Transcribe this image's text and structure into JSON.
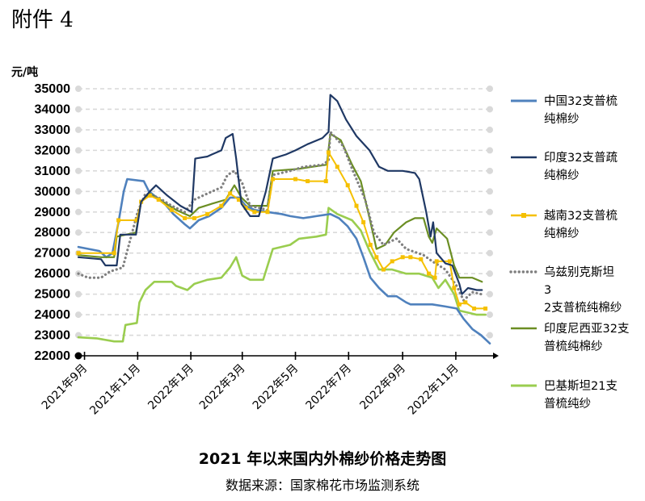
{
  "page": {
    "attachment_label": "附件 4"
  },
  "chart_data": {
    "type": "line",
    "title": "2021 年以来国内外棉纱价格走势图",
    "source": "数据来源：国家棉花市场监测系统",
    "ylabel": "元/吨",
    "ylim": [
      22000,
      35000
    ],
    "yticks": [
      22000,
      23000,
      24000,
      25000,
      26000,
      27000,
      28000,
      29000,
      30000,
      31000,
      32000,
      33000,
      34000,
      35000
    ],
    "grid": true,
    "legend_position": "right",
    "x_axis": {
      "type": "date",
      "range": [
        "2021-08-25",
        "2022-12-10"
      ],
      "tick_dates": [
        "2021-09-01",
        "2021-11-01",
        "2022-01-01",
        "2022-03-01",
        "2022-05-01",
        "2022-07-01",
        "2022-09-01",
        "2022-11-01"
      ],
      "tick_labels": [
        "2021年9月",
        "2021年11月",
        "2022年1月",
        "2022年3月",
        "2022年5月",
        "2022年7月",
        "2022年9月",
        "2022年11月"
      ]
    },
    "series": [
      {
        "name": "中国32支普梳纯棉纱",
        "color": "#4f81bd",
        "style": "solid",
        "width": 2.6,
        "points": [
          [
            "2021-08-25",
            27300
          ],
          [
            "2021-09-06",
            27200
          ],
          [
            "2021-09-18",
            27100
          ],
          [
            "2021-09-26",
            26800
          ],
          [
            "2021-10-03",
            27000
          ],
          [
            "2021-10-10",
            28500
          ],
          [
            "2021-10-16",
            30000
          ],
          [
            "2021-10-20",
            30600
          ],
          [
            "2021-11-08",
            30500
          ],
          [
            "2021-11-14",
            30000
          ],
          [
            "2021-11-20",
            29800
          ],
          [
            "2021-11-30",
            29500
          ],
          [
            "2021-12-12",
            28900
          ],
          [
            "2021-12-25",
            28400
          ],
          [
            "2021-12-31",
            28200
          ],
          [
            "2022-01-10",
            28600
          ],
          [
            "2022-01-22",
            28800
          ],
          [
            "2022-02-05",
            29200
          ],
          [
            "2022-02-15",
            29700
          ],
          [
            "2022-02-25",
            29700
          ],
          [
            "2022-03-05",
            29300
          ],
          [
            "2022-03-15",
            29100
          ],
          [
            "2022-03-30",
            29000
          ],
          [
            "2022-04-15",
            28900
          ],
          [
            "2022-04-25",
            28800
          ],
          [
            "2022-05-10",
            28700
          ],
          [
            "2022-05-25",
            28800
          ],
          [
            "2022-06-10",
            28900
          ],
          [
            "2022-06-20",
            28700
          ],
          [
            "2022-06-30",
            28300
          ],
          [
            "2022-07-10",
            27700
          ],
          [
            "2022-07-18",
            26800
          ],
          [
            "2022-07-26",
            25800
          ],
          [
            "2022-08-05",
            25300
          ],
          [
            "2022-08-15",
            24900
          ],
          [
            "2022-08-25",
            24900
          ],
          [
            "2022-09-05",
            24600
          ],
          [
            "2022-09-10",
            24500
          ],
          [
            "2022-09-22",
            24500
          ],
          [
            "2022-10-05",
            24500
          ],
          [
            "2022-10-20",
            24400
          ],
          [
            "2022-11-02",
            24300
          ],
          [
            "2022-11-10",
            23800
          ],
          [
            "2022-11-20",
            23300
          ],
          [
            "2022-11-30",
            23000
          ],
          [
            "2022-12-10",
            22600
          ]
        ]
      },
      {
        "name": "印度32支普疏纯棉纱",
        "color": "#1f3864",
        "style": "solid",
        "width": 2.2,
        "points": [
          [
            "2021-08-25",
            26800
          ],
          [
            "2021-09-20",
            26700
          ],
          [
            "2021-09-25",
            26400
          ],
          [
            "2021-10-08",
            26400
          ],
          [
            "2021-10-12",
            27900
          ],
          [
            "2021-10-30",
            27900
          ],
          [
            "2021-11-05",
            29500
          ],
          [
            "2021-11-15",
            30000
          ],
          [
            "2021-11-22",
            30300
          ],
          [
            "2021-12-05",
            29800
          ],
          [
            "2021-12-20",
            29300
          ],
          [
            "2022-01-02",
            29000
          ],
          [
            "2022-01-06",
            31600
          ],
          [
            "2022-01-20",
            31700
          ],
          [
            "2022-01-25",
            31800
          ],
          [
            "2022-02-05",
            32000
          ],
          [
            "2022-02-10",
            32600
          ],
          [
            "2022-02-18",
            32800
          ],
          [
            "2022-02-22",
            31600
          ],
          [
            "2022-02-28",
            29400
          ],
          [
            "2022-03-10",
            28800
          ],
          [
            "2022-03-20",
            28800
          ],
          [
            "2022-03-28",
            30000
          ],
          [
            "2022-04-05",
            31600
          ],
          [
            "2022-04-20",
            31800
          ],
          [
            "2022-05-01",
            32000
          ],
          [
            "2022-05-15",
            32300
          ],
          [
            "2022-06-01",
            32600
          ],
          [
            "2022-06-08",
            32900
          ],
          [
            "2022-06-10",
            34700
          ],
          [
            "2022-06-18",
            34400
          ],
          [
            "2022-06-28",
            33500
          ],
          [
            "2022-07-10",
            32700
          ],
          [
            "2022-07-25",
            32000
          ],
          [
            "2022-08-05",
            31200
          ],
          [
            "2022-08-15",
            31000
          ],
          [
            "2022-09-01",
            31000
          ],
          [
            "2022-09-15",
            30900
          ],
          [
            "2022-09-20",
            30600
          ],
          [
            "2022-09-28",
            29000
          ],
          [
            "2022-10-03",
            27800
          ],
          [
            "2022-10-06",
            28500
          ],
          [
            "2022-10-10",
            27000
          ],
          [
            "2022-10-20",
            26500
          ],
          [
            "2022-10-28",
            26400
          ],
          [
            "2022-11-05",
            25500
          ],
          [
            "2022-11-08",
            25000
          ],
          [
            "2022-11-15",
            25300
          ],
          [
            "2022-11-25",
            25200
          ],
          [
            "2022-12-01",
            25200
          ]
        ]
      },
      {
        "name": "越南32支普梳纯棉纱",
        "color": "#f5c000",
        "style": "solid-markers",
        "width": 2.0,
        "points": [
          [
            "2021-08-25",
            27000
          ],
          [
            "2021-10-05",
            27000
          ],
          [
            "2021-10-10",
            28600
          ],
          [
            "2021-10-31",
            28600
          ],
          [
            "2021-11-05",
            29500
          ],
          [
            "2021-11-15",
            29800
          ],
          [
            "2021-11-25",
            29600
          ],
          [
            "2021-12-10",
            29100
          ],
          [
            "2021-12-25",
            28700
          ],
          [
            "2022-01-05",
            28700
          ],
          [
            "2022-01-20",
            28900
          ],
          [
            "2022-02-05",
            29300
          ],
          [
            "2022-02-15",
            29900
          ],
          [
            "2022-02-25",
            29600
          ],
          [
            "2022-03-05",
            29200
          ],
          [
            "2022-03-15",
            29000
          ],
          [
            "2022-03-30",
            29000
          ],
          [
            "2022-04-05",
            30600
          ],
          [
            "2022-05-01",
            30600
          ],
          [
            "2022-05-15",
            30500
          ],
          [
            "2022-06-05",
            30500
          ],
          [
            "2022-06-08",
            31900
          ],
          [
            "2022-06-18",
            31200
          ],
          [
            "2022-06-30",
            30300
          ],
          [
            "2022-07-10",
            29300
          ],
          [
            "2022-07-18",
            28500
          ],
          [
            "2022-07-26",
            27400
          ],
          [
            "2022-08-02",
            26800
          ],
          [
            "2022-08-10",
            26200
          ],
          [
            "2022-08-20",
            26600
          ],
          [
            "2022-09-01",
            26800
          ],
          [
            "2022-09-10",
            26800
          ],
          [
            "2022-09-22",
            26700
          ],
          [
            "2022-10-01",
            26000
          ],
          [
            "2022-10-08",
            25800
          ],
          [
            "2022-10-10",
            26600
          ],
          [
            "2022-10-25",
            26600
          ],
          [
            "2022-10-30",
            25300
          ],
          [
            "2022-11-05",
            24500
          ],
          [
            "2022-11-12",
            24600
          ],
          [
            "2022-11-22",
            24300
          ],
          [
            "2022-12-05",
            24300
          ]
        ]
      },
      {
        "name": "乌兹别克斯坦32支普梳纯棉纱",
        "color": "#7f7f7f",
        "style": "dotted",
        "width": 3.2,
        "points": [
          [
            "2021-08-25",
            26000
          ],
          [
            "2021-09-05",
            25800
          ],
          [
            "2021-09-20",
            25800
          ],
          [
            "2021-09-30",
            26100
          ],
          [
            "2021-10-15",
            26300
          ],
          [
            "2021-11-01",
            29000
          ],
          [
            "2021-11-10",
            29900
          ],
          [
            "2021-11-25",
            29700
          ],
          [
            "2021-12-10",
            29300
          ],
          [
            "2021-12-25",
            29000
          ],
          [
            "2022-01-05",
            29600
          ],
          [
            "2022-01-20",
            29900
          ],
          [
            "2022-02-05",
            30200
          ],
          [
            "2022-02-12",
            30800
          ],
          [
            "2022-02-20",
            31000
          ],
          [
            "2022-03-01",
            30400
          ],
          [
            "2022-03-10",
            29300
          ],
          [
            "2022-03-30",
            29100
          ],
          [
            "2022-04-05",
            30800
          ],
          [
            "2022-04-25",
            31000
          ],
          [
            "2022-05-10",
            31200
          ],
          [
            "2022-06-01",
            31300
          ],
          [
            "2022-06-08",
            31500
          ],
          [
            "2022-06-10",
            32900
          ],
          [
            "2022-06-25",
            32200
          ],
          [
            "2022-07-05",
            31100
          ],
          [
            "2022-07-20",
            29600
          ],
          [
            "2022-07-30",
            28000
          ],
          [
            "2022-08-10",
            27400
          ],
          [
            "2022-08-25",
            27700
          ],
          [
            "2022-09-05",
            27200
          ],
          [
            "2022-09-25",
            26900
          ],
          [
            "2022-10-05",
            26600
          ],
          [
            "2022-10-20",
            26200
          ],
          [
            "2022-11-02",
            25400
          ],
          [
            "2022-11-10",
            24700
          ],
          [
            "2022-11-20",
            25100
          ],
          [
            "2022-11-30",
            25000
          ]
        ]
      },
      {
        "name": "印度尼西亚32支普梳纯棉纱",
        "color": "#6b8e23",
        "style": "solid",
        "width": 2.2,
        "points": [
          [
            "2021-08-25",
            26900
          ],
          [
            "2021-09-20",
            26800
          ],
          [
            "2021-10-05",
            26800
          ],
          [
            "2021-10-08",
            27800
          ],
          [
            "2021-10-30",
            28000
          ],
          [
            "2021-11-05",
            29500
          ],
          [
            "2021-11-15",
            29900
          ],
          [
            "2021-11-30",
            29500
          ],
          [
            "2021-12-15",
            29100
          ],
          [
            "2021-12-31",
            28800
          ],
          [
            "2022-01-10",
            29200
          ],
          [
            "2022-01-25",
            29400
          ],
          [
            "2022-02-10",
            29600
          ],
          [
            "2022-02-20",
            30300
          ],
          [
            "2022-02-28",
            29700
          ],
          [
            "2022-03-10",
            29300
          ],
          [
            "2022-03-30",
            29300
          ],
          [
            "2022-04-05",
            31000
          ],
          [
            "2022-05-05",
            31100
          ],
          [
            "2022-05-20",
            31200
          ],
          [
            "2022-06-06",
            31300
          ],
          [
            "2022-06-10",
            32800
          ],
          [
            "2022-06-22",
            32500
          ],
          [
            "2022-07-05",
            31300
          ],
          [
            "2022-07-15",
            30500
          ],
          [
            "2022-07-25",
            28700
          ],
          [
            "2022-08-02",
            27200
          ],
          [
            "2022-08-12",
            27400
          ],
          [
            "2022-08-22",
            28000
          ],
          [
            "2022-09-05",
            28500
          ],
          [
            "2022-09-15",
            28700
          ],
          [
            "2022-09-25",
            28700
          ],
          [
            "2022-10-01",
            27800
          ],
          [
            "2022-10-05",
            27500
          ],
          [
            "2022-10-10",
            28200
          ],
          [
            "2022-10-22",
            27700
          ],
          [
            "2022-10-30",
            26400
          ],
          [
            "2022-11-05",
            25800
          ],
          [
            "2022-11-20",
            25800
          ],
          [
            "2022-12-01",
            25600
          ]
        ]
      },
      {
        "name": "巴基斯坦21支普梳纯纱",
        "color": "#9acd4f",
        "style": "solid",
        "width": 2.6,
        "points": [
          [
            "2021-08-25",
            22900
          ],
          [
            "2021-09-15",
            22850
          ],
          [
            "2021-10-05",
            22700
          ],
          [
            "2021-10-15",
            22700
          ],
          [
            "2021-10-18",
            23500
          ],
          [
            "2021-10-31",
            23600
          ],
          [
            "2021-11-03",
            24600
          ],
          [
            "2021-11-10",
            25200
          ],
          [
            "2021-11-20",
            25600
          ],
          [
            "2021-12-10",
            25600
          ],
          [
            "2021-12-15",
            25400
          ],
          [
            "2021-12-28",
            25200
          ],
          [
            "2022-01-05",
            25500
          ],
          [
            "2022-01-20",
            25700
          ],
          [
            "2022-02-05",
            25800
          ],
          [
            "2022-02-15",
            26300
          ],
          [
            "2022-02-22",
            26800
          ],
          [
            "2022-03-01",
            25900
          ],
          [
            "2022-03-10",
            25700
          ],
          [
            "2022-03-25",
            25700
          ],
          [
            "2022-04-05",
            27200
          ],
          [
            "2022-04-25",
            27400
          ],
          [
            "2022-05-05",
            27700
          ],
          [
            "2022-05-25",
            27800
          ],
          [
            "2022-06-05",
            27900
          ],
          [
            "2022-06-08",
            29200
          ],
          [
            "2022-06-18",
            28900
          ],
          [
            "2022-07-05",
            28600
          ],
          [
            "2022-07-15",
            28100
          ],
          [
            "2022-07-25",
            27100
          ],
          [
            "2022-08-05",
            26200
          ],
          [
            "2022-08-20",
            26200
          ],
          [
            "2022-09-05",
            26000
          ],
          [
            "2022-09-20",
            26000
          ],
          [
            "2022-10-05",
            25800
          ],
          [
            "2022-10-12",
            25300
          ],
          [
            "2022-10-20",
            25700
          ],
          [
            "2022-10-30",
            25000
          ],
          [
            "2022-11-05",
            24200
          ],
          [
            "2022-11-15",
            24100
          ],
          [
            "2022-11-25",
            24000
          ],
          [
            "2022-12-05",
            24000
          ]
        ]
      }
    ]
  }
}
